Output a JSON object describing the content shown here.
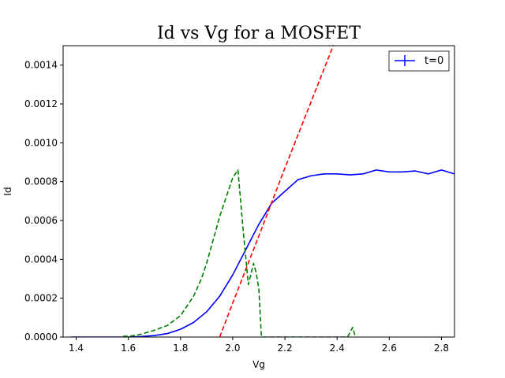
{
  "chart_data": {
    "type": "line",
    "title": "Id vs Vg for a MOSFET",
    "xlabel": "Vg",
    "ylabel": "Id",
    "xlim": [
      1.35,
      2.85
    ],
    "ylim": [
      0,
      0.0015
    ],
    "xticks": [
      "1.4",
      "1.6",
      "1.8",
      "2.0",
      "2.2",
      "2.4",
      "2.6",
      "2.8"
    ],
    "yticks": [
      "0.0000",
      "0.0002",
      "0.0004",
      "0.0006",
      "0.0008",
      "0.0010",
      "0.0012",
      "0.0014"
    ],
    "grid": false,
    "legend": {
      "placement": "top-right",
      "entries": [
        "t=0"
      ]
    },
    "series": [
      {
        "name": "t=0",
        "color": "#0000ff",
        "style": "solid",
        "x": [
          1.38,
          1.45,
          1.5,
          1.55,
          1.6,
          1.65,
          1.7,
          1.75,
          1.8,
          1.85,
          1.9,
          1.95,
          2.0,
          2.05,
          2.1,
          2.15,
          2.2,
          2.25,
          2.3,
          2.35,
          2.4,
          2.45,
          2.5,
          2.55,
          2.6,
          2.65,
          2.7,
          2.75,
          2.8,
          2.85
        ],
        "y": [
          0,
          0,
          0,
          0,
          0,
          3e-06,
          8e-06,
          1.8e-05,
          4e-05,
          7.5e-05,
          0.00013,
          0.00021,
          0.00032,
          0.00045,
          0.00058,
          0.00069,
          0.00075,
          0.00081,
          0.00083,
          0.00084,
          0.00084,
          0.000835,
          0.00084,
          0.00086,
          0.00085,
          0.00085,
          0.000855,
          0.00084,
          0.00086,
          0.00084
        ]
      },
      {
        "color": "#ff0000",
        "style": "dashed",
        "x": [
          1.95,
          2.0,
          2.1,
          2.2,
          2.3,
          2.4,
          2.44
        ],
        "y": [
          0,
          0.000175,
          0.00052,
          0.00087,
          0.00121,
          0.00155,
          0.0015
        ]
      },
      {
        "color": "#008000",
        "style": "dashed",
        "x": [
          1.58,
          1.6,
          1.65,
          1.7,
          1.75,
          1.8,
          1.85,
          1.88,
          1.9,
          1.95,
          2.0,
          2.02,
          2.04,
          2.06,
          2.08,
          2.09,
          2.1,
          2.11,
          2.44,
          2.46,
          2.47
        ],
        "y": [
          5e-06,
          3e-06,
          1.5e-05,
          3.5e-05,
          6e-05,
          0.00011,
          0.00021,
          0.0003,
          0.00038,
          0.00062,
          0.00082,
          0.00086,
          0.00055,
          0.00027,
          0.00038,
          0.00033,
          0.00025,
          0,
          0.0,
          5e-05,
          0.0
        ]
      }
    ]
  }
}
